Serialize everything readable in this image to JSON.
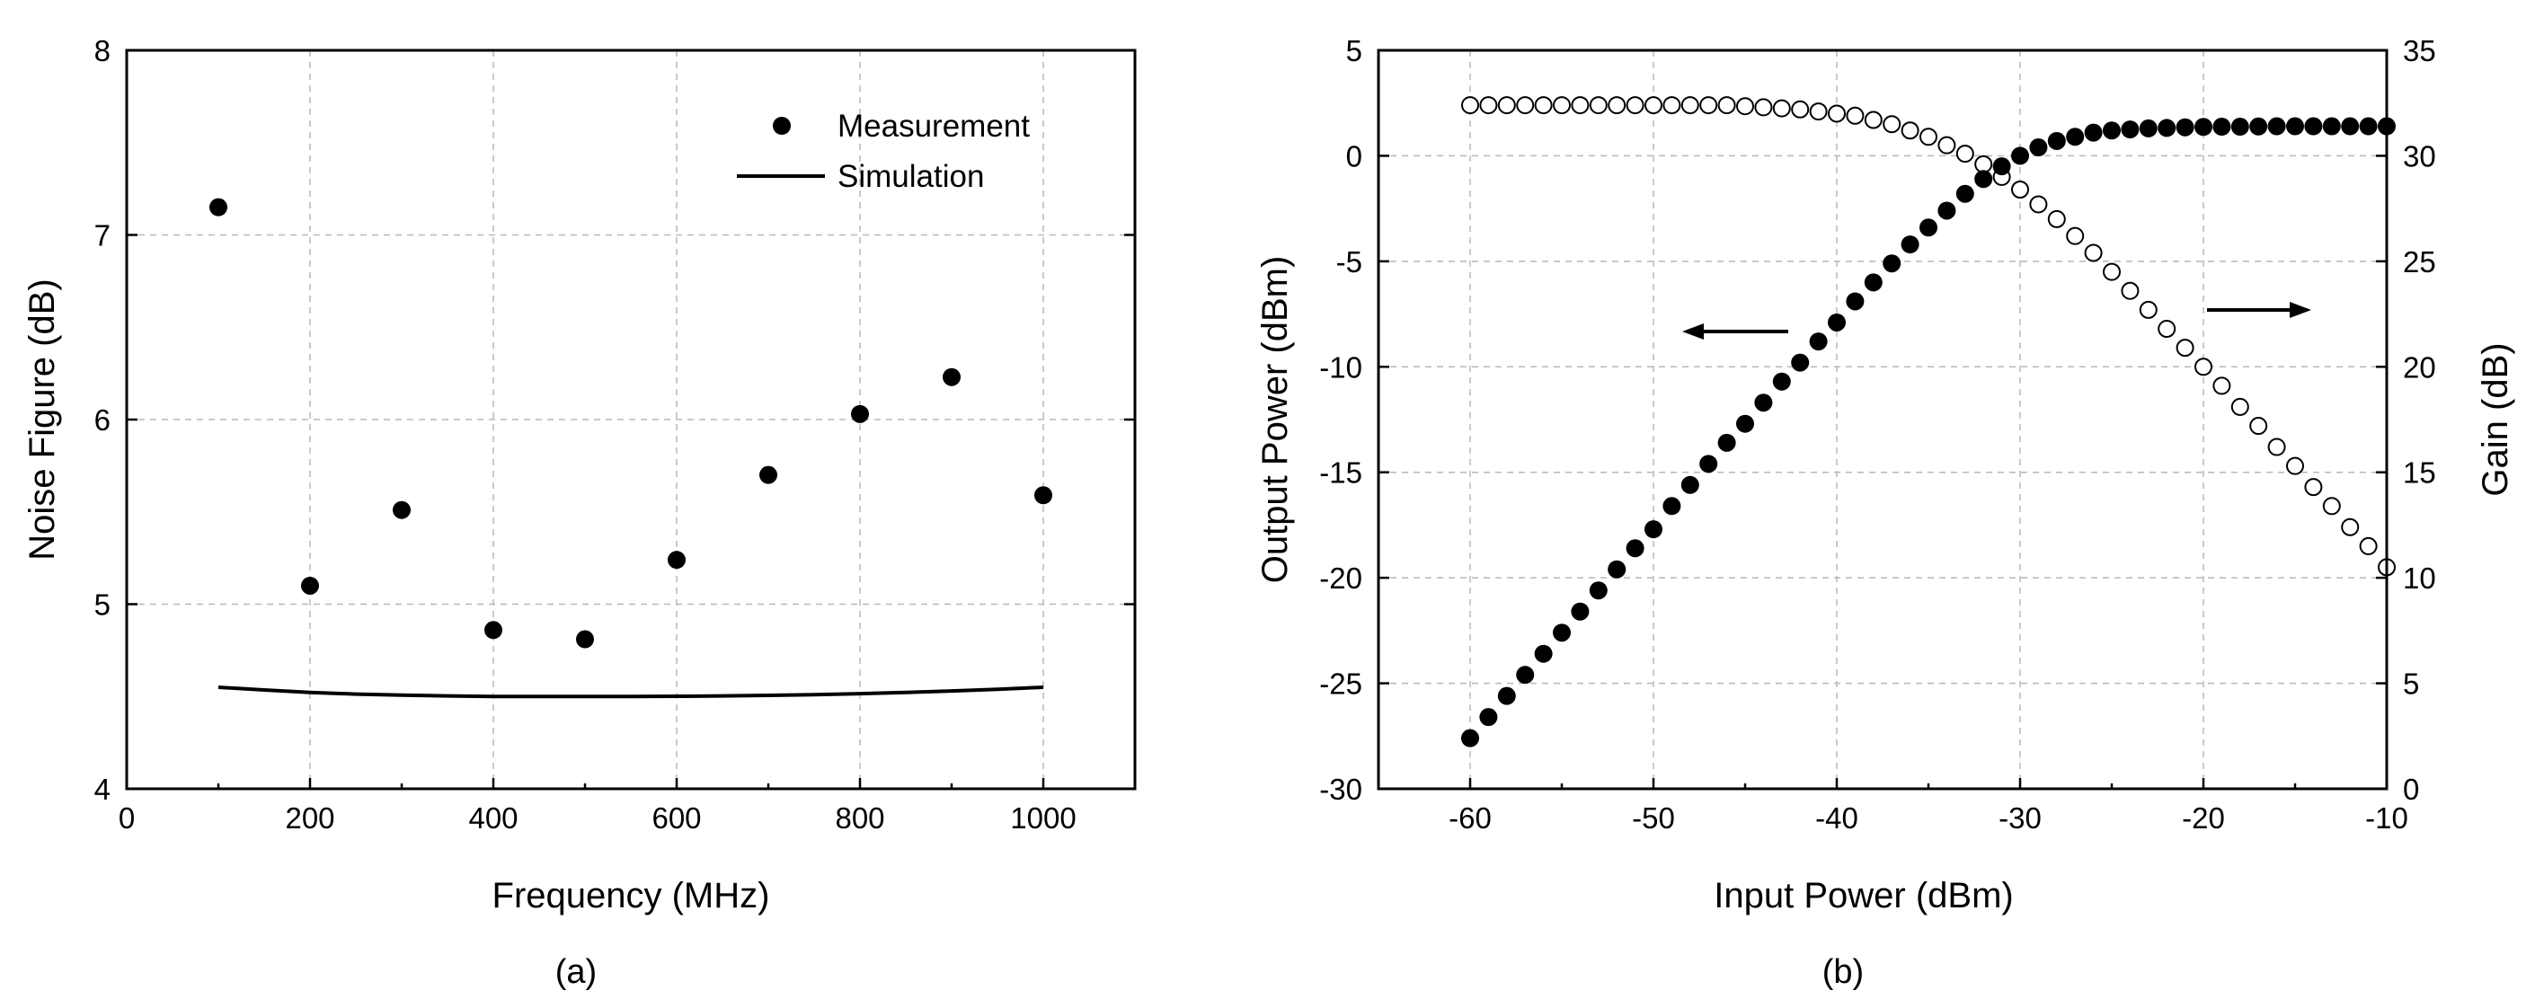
{
  "chart_data": [
    {
      "type": "scatter",
      "caption": "(a)",
      "xlabel": "Frequency (MHz)",
      "ylabel": "Noise Figure (dB)",
      "xlim": [
        0,
        1100
      ],
      "ylim": [
        4,
        8
      ],
      "xticks": [
        0,
        200,
        400,
        600,
        800,
        1000
      ],
      "yticks": [
        4,
        5,
        6,
        7,
        8
      ],
      "grid": true,
      "legend": {
        "position": "top-right"
      },
      "series": [
        {
          "name": "Measurement",
          "style": "filled-marker",
          "x": [
            100,
            200,
            300,
            400,
            500,
            600,
            700,
            800,
            900,
            1000
          ],
          "y": [
            7.15,
            5.1,
            5.51,
            4.86,
            4.81,
            5.24,
            5.7,
            6.03,
            6.23,
            5.59
          ]
        },
        {
          "name": "Simulation",
          "style": "line",
          "x": [
            100,
            150,
            200,
            250,
            300,
            350,
            400,
            450,
            500,
            550,
            600,
            650,
            700,
            750,
            800,
            850,
            900,
            950,
            1000
          ],
          "y": [
            4.55,
            4.535,
            4.522,
            4.513,
            4.507,
            4.503,
            4.5,
            4.5,
            4.5,
            4.5,
            4.501,
            4.503,
            4.506,
            4.51,
            4.515,
            4.522,
            4.53,
            4.539,
            4.55
          ]
        }
      ]
    },
    {
      "type": "scatter",
      "caption": "(b)",
      "xlabel": "Input Power (dBm)",
      "ylabel": "Output Power (dBm)",
      "y2label": "Gain (dB)",
      "xlim": [
        -65,
        -10
      ],
      "ylim": [
        -30,
        5
      ],
      "y2lim": [
        0,
        35
      ],
      "xticks": [
        -60,
        -50,
        -40,
        -30,
        -20,
        -10
      ],
      "yticks": [
        -30,
        -25,
        -20,
        -15,
        -10,
        -5,
        0,
        5
      ],
      "y2ticks": [
        0,
        5,
        10,
        15,
        20,
        25,
        30,
        35
      ],
      "grid": true,
      "annotations": [
        {
          "type": "arrow",
          "direction": "left",
          "points_to": "Output Power axis"
        },
        {
          "type": "arrow",
          "direction": "right",
          "points_to": "Gain axis"
        }
      ],
      "series": [
        {
          "name": "Output Power",
          "axis": "left",
          "style": "filled-marker",
          "x": [
            -60,
            -59,
            -58,
            -57,
            -56,
            -55,
            -54,
            -53,
            -52,
            -51,
            -50,
            -49,
            -48,
            -47,
            -46,
            -45,
            -44,
            -43,
            -42,
            -41,
            -40,
            -39,
            -38,
            -37,
            -36,
            -35,
            -34,
            -33,
            -32,
            -31,
            -30,
            -29,
            -28,
            -27,
            -26,
            -25,
            -24,
            -23,
            -22,
            -21,
            -20,
            -19,
            -18,
            -17,
            -16,
            -15,
            -14,
            -13,
            -12,
            -11,
            -10
          ],
          "y": [
            -27.6,
            -26.6,
            -25.6,
            -24.6,
            -23.6,
            -22.6,
            -21.6,
            -20.6,
            -19.6,
            -18.6,
            -17.7,
            -16.6,
            -15.6,
            -14.6,
            -13.6,
            -12.7,
            -11.7,
            -10.7,
            -9.8,
            -8.8,
            -7.9,
            -6.9,
            -6.0,
            -5.1,
            -4.2,
            -3.4,
            -2.6,
            -1.8,
            -1.1,
            -0.5,
            0.0,
            0.4,
            0.7,
            0.9,
            1.1,
            1.2,
            1.25,
            1.3,
            1.32,
            1.35,
            1.37,
            1.38,
            1.38,
            1.39,
            1.4,
            1.4,
            1.4,
            1.4,
            1.4,
            1.4,
            1.4
          ]
        },
        {
          "name": "Gain",
          "axis": "right",
          "style": "open-marker",
          "x": [
            -60,
            -59,
            -58,
            -57,
            -56,
            -55,
            -54,
            -53,
            -52,
            -51,
            -50,
            -49,
            -48,
            -47,
            -46,
            -45,
            -44,
            -43,
            -42,
            -41,
            -40,
            -39,
            -38,
            -37,
            -36,
            -35,
            -34,
            -33,
            -32,
            -31,
            -30,
            -29,
            -28,
            -27,
            -26,
            -25,
            -24,
            -23,
            -22,
            -21,
            -20,
            -19,
            -18,
            -17,
            -16,
            -15,
            -14,
            -13,
            -12,
            -11,
            -10
          ],
          "y": [
            32.4,
            32.4,
            32.4,
            32.4,
            32.4,
            32.4,
            32.4,
            32.4,
            32.4,
            32.4,
            32.4,
            32.4,
            32.4,
            32.4,
            32.4,
            32.35,
            32.3,
            32.25,
            32.2,
            32.1,
            32.0,
            31.9,
            31.7,
            31.5,
            31.2,
            30.9,
            30.5,
            30.1,
            29.6,
            29.0,
            28.4,
            27.7,
            27.0,
            26.2,
            25.4,
            24.5,
            23.6,
            22.7,
            21.8,
            20.9,
            20.0,
            19.1,
            18.1,
            17.2,
            16.2,
            15.3,
            14.3,
            13.4,
            12.4,
            11.5,
            10.5
          ]
        }
      ]
    }
  ]
}
